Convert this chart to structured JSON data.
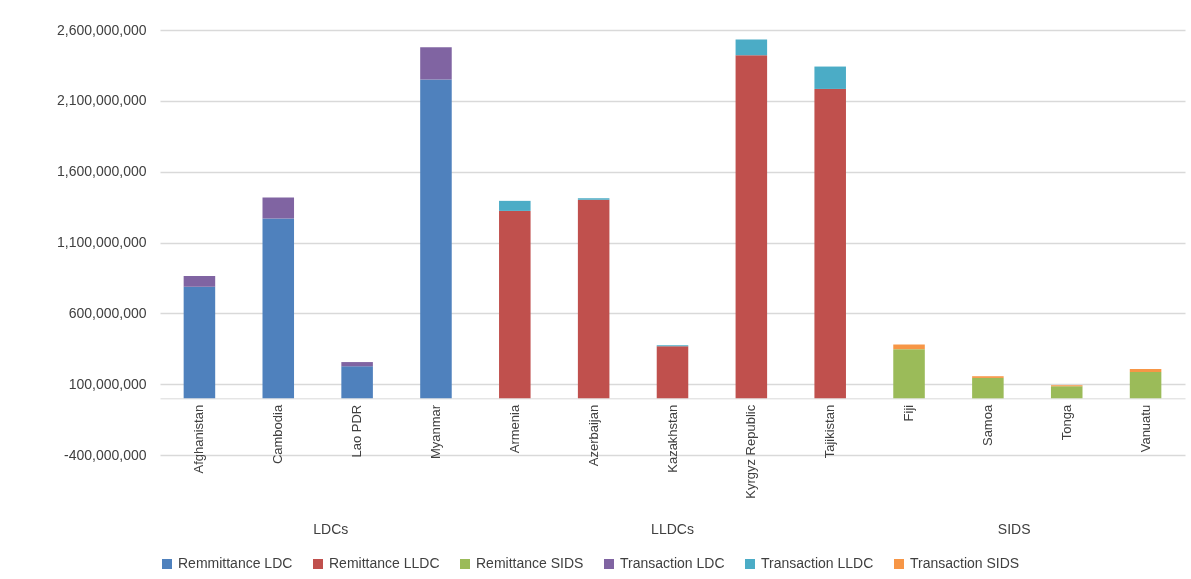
{
  "chart_data": {
    "type": "bar",
    "stacked": true,
    "categories": [
      "Afghanistan",
      "Cambodia",
      "Lao PDR",
      "Myanmar",
      "Armenia",
      "Azerbaijan",
      "Kazakhstan",
      "Kyrgyz Republic",
      "Tajikistan",
      "Fiji",
      "Samoa",
      "Tonga",
      "Vanuatu"
    ],
    "series": [
      {
        "name": "Remmittance LDC",
        "color": "#4f81bd",
        "values": [
          787000000,
          1269000000,
          226000000,
          2250000000,
          null,
          null,
          null,
          null,
          null,
          null,
          null,
          null,
          null
        ]
      },
      {
        "name": "Remittance LLDC",
        "color": "#c0504d",
        "values": [
          null,
          null,
          null,
          null,
          1323000000,
          1401000000,
          368000000,
          2422000000,
          2184000000,
          null,
          null,
          null,
          null
        ]
      },
      {
        "name": "Remittance SIDS",
        "color": "#9bbb59",
        "values": [
          null,
          null,
          null,
          null,
          null,
          null,
          null,
          null,
          null,
          347000000,
          144000000,
          85000000,
          186000000
        ]
      },
      {
        "name": "Transaction LDC",
        "color": "#8064a2",
        "values": [
          76000000,
          148000000,
          30000000,
          229000000,
          null,
          null,
          null,
          null,
          null,
          null,
          null,
          null,
          null
        ]
      },
      {
        "name": "Transaction LLDC",
        "color": "#4bacc6",
        "values": [
          null,
          null,
          null,
          null,
          71000000,
          12000000,
          7000000,
          111000000,
          158000000,
          null,
          null,
          null,
          null
        ]
      },
      {
        "name": "Transaction SIDS",
        "color": "#f79646",
        "values": [
          null,
          null,
          null,
          null,
          null,
          null,
          null,
          null,
          null,
          33000000,
          12000000,
          7000000,
          21000000
        ]
      }
    ],
    "ylim": [
      -400000000,
      2600000000
    ],
    "yticks": [
      {
        "value": -400000000,
        "label": "-400,000,000"
      },
      {
        "value": 100000000,
        "label": "100,000,000"
      },
      {
        "value": 600000000,
        "label": "600,000,000"
      },
      {
        "value": 1100000000,
        "label": "1,100,000,000"
      },
      {
        "value": 1600000000,
        "label": "1,600,000,000"
      },
      {
        "value": 2100000000,
        "label": "2,100,000,000"
      },
      {
        "value": 2600000000,
        "label": "2,600,000,000"
      }
    ],
    "grid": "y",
    "legend": "bottom",
    "annotations": [
      "LDCs",
      "LLDCs",
      "SIDS"
    ]
  }
}
